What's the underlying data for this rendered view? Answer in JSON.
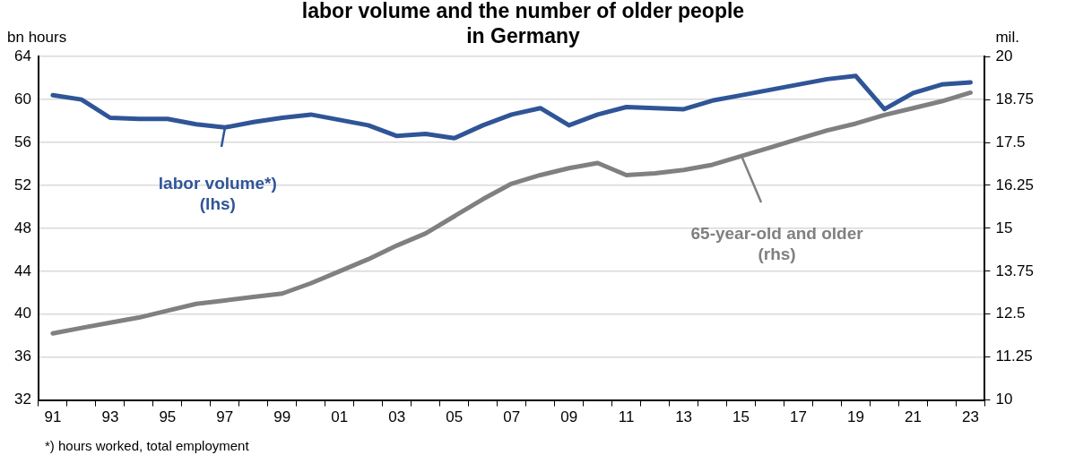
{
  "chart_data": {
    "type": "line",
    "title": "labor volume and the number of older people\nin Germany",
    "ylabel": "bn hours",
    "y2label": "mil.",
    "categories": [
      "91",
      null,
      "93",
      null,
      "95",
      null,
      "97",
      null,
      "99",
      null,
      "01",
      null,
      "03",
      null,
      "05",
      null,
      "07",
      null,
      "09",
      null,
      "11",
      null,
      "13",
      null,
      "15",
      null,
      "17",
      null,
      "19",
      null,
      "21",
      null,
      "23"
    ],
    "series": [
      {
        "name": "labor volume*)\n(lhs)",
        "color": "#2f5597",
        "values": [
          60.4,
          60.0,
          58.3,
          58.2,
          58.2,
          57.7,
          57.4,
          57.9,
          58.3,
          58.6,
          58.1,
          57.6,
          56.6,
          56.8,
          56.4,
          57.6,
          58.6,
          59.2,
          57.6,
          58.6,
          59.3,
          59.2,
          59.1,
          59.9,
          60.4,
          60.9,
          61.4,
          61.9,
          62.2,
          59.1,
          60.6,
          61.4,
          61.6
        ]
      },
      {
        "name": "65-year-old and older\n(rhs)",
        "color": "#808080",
        "axis": "y2",
        "values": [
          11.94,
          12.1,
          12.25,
          12.4,
          12.6,
          12.8,
          12.9,
          13.0,
          13.1,
          13.4,
          13.75,
          14.1,
          14.5,
          14.85,
          15.35,
          15.85,
          16.3,
          16.55,
          16.75,
          16.9,
          16.55,
          16.6,
          16.7,
          16.85,
          17.1,
          17.35,
          17.6,
          17.85,
          18.05,
          18.3,
          18.5,
          18.7,
          18.95
        ]
      }
    ],
    "ylim": [
      32,
      64
    ],
    "yticks": [
      32,
      36,
      40,
      44,
      48,
      52,
      56,
      60,
      64
    ],
    "y2lim": [
      10,
      20
    ],
    "y2ticks": [
      10,
      11.25,
      12.5,
      13.75,
      15,
      16.25,
      17.5,
      18.75,
      20
    ],
    "grid": "y",
    "legend": false,
    "marker": "none",
    "line_style": "solid",
    "annotations": [
      "*) hours worked, total employment"
    ]
  }
}
